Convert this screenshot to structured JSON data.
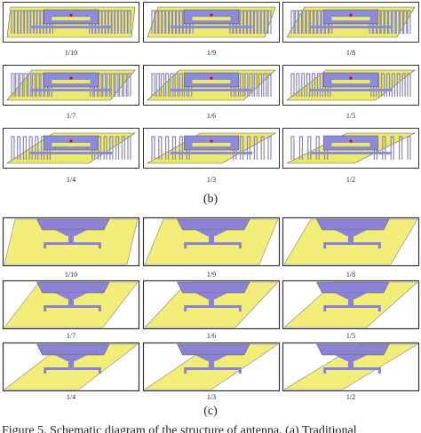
{
  "panel_b": {
    "labels": [
      "1/10",
      "1/9",
      "1/8",
      "1/7",
      "1/6",
      "1/5",
      "1/4",
      "1/3",
      "1/2"
    ],
    "caption": "(b)"
  },
  "panel_c": {
    "labels": [
      "1/10",
      "1/9",
      "1/8",
      "1/7",
      "1/6",
      "1/5",
      "1/4",
      "1/3",
      "1/2"
    ],
    "caption": "(c)"
  },
  "figure_caption": "Figure 5. Schematic diagram of the structure of antenna. (a) Traditional"
}
